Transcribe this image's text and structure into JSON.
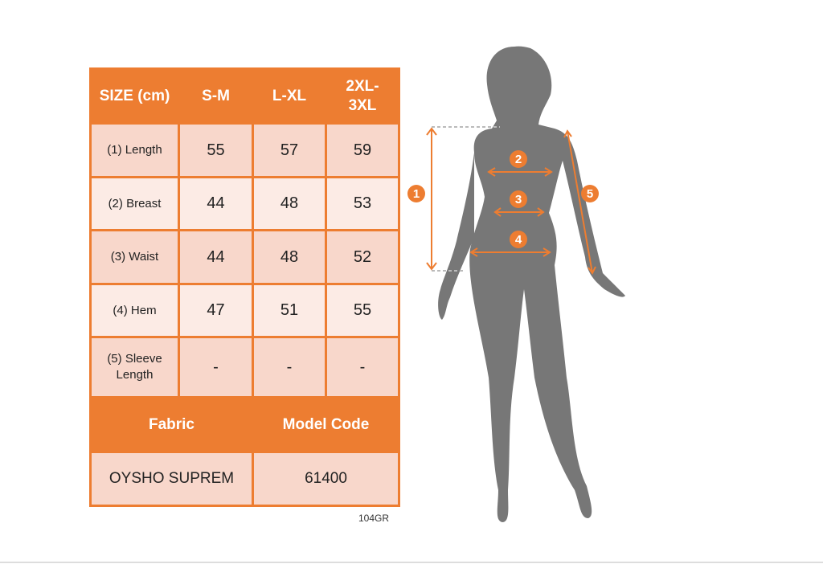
{
  "table": {
    "header": [
      "SIZE (cm)",
      "S-M",
      "L-XL",
      "2XL-3XL"
    ],
    "rows": [
      {
        "label": "(1) Length",
        "values": [
          "55",
          "57",
          "59"
        ]
      },
      {
        "label": "(2) Breast",
        "values": [
          "44",
          "48",
          "53"
        ]
      },
      {
        "label": "(3) Waist",
        "values": [
          "44",
          "48",
          "52"
        ]
      },
      {
        "label": "(4) Hem",
        "values": [
          "47",
          "51",
          "55"
        ]
      },
      {
        "label": "(5) Sleeve Length",
        "values": [
          "-",
          "-",
          "-"
        ]
      }
    ],
    "fabric_header": "Fabric",
    "model_code_header": "Model Code",
    "fabric": "OYSHO SUPREM",
    "model_code": "61400"
  },
  "product_code": "104GR",
  "figure": {
    "markers": [
      "1",
      "2",
      "3",
      "4",
      "5"
    ]
  },
  "colors": {
    "accent": "#ed7d31",
    "row_dark": "#f8d7cb",
    "row_light": "#fcebe5",
    "silhouette": "#777777"
  }
}
